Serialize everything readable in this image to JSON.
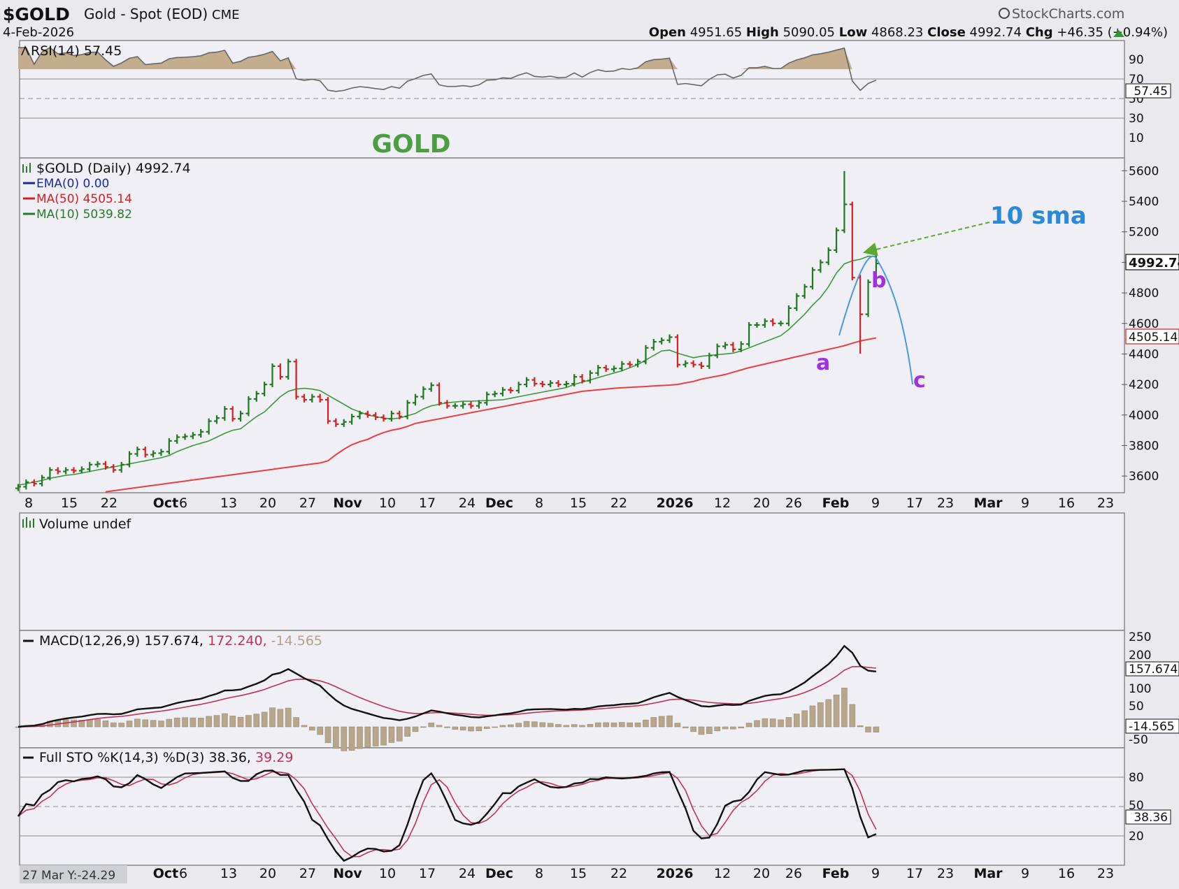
{
  "header": {
    "symbol": "$GOLD",
    "name": "Gold - Spot (EOD)",
    "exchange": "CME",
    "date": "4-Feb-2026",
    "brand": "StockCharts.com",
    "open_label": "Open",
    "open": "4951.65",
    "high_label": "High",
    "high": "5090.05",
    "low_label": "Low",
    "low": "4868.23",
    "close_label": "Close",
    "close": "4992.74",
    "chg_label": "Chg",
    "chg": "+46.35 (+0.94%)"
  },
  "colors": {
    "up": "#1f7a1f",
    "down": "#d42020",
    "ma50": "#e84040",
    "ma10": "#3a9a3a",
    "projection": "#4a9ae0",
    "wave_label": "#a030e0",
    "title_green": "#4aa040",
    "ema": "#1a2a9a",
    "macd_signal": "#c0305a",
    "hist": "#b8a68a"
  },
  "rsi_panel": {
    "legend": "RSI(14) 57.45",
    "badge": "57.45",
    "ticks": [
      "90",
      "70",
      "50",
      "30",
      "10"
    ],
    "chart_title": "GOLD"
  },
  "price_panel": {
    "legend_main": "$GOLD (Daily) 4992.74",
    "legend_ema": "EMA(0) 0.00",
    "legend_ma50": "MA(50) 4505.14",
    "legend_ma10": "MA(10) 5039.82",
    "ticks": [
      "5600",
      "5400",
      "5200",
      "5000",
      "4800",
      "4600",
      "4400",
      "4200",
      "4000",
      "3800",
      "3600"
    ],
    "badge_close": "4992.74",
    "badge_ma50": "4505.14",
    "annotation_sma": "10 sma",
    "wave_a": "a",
    "wave_b": "b",
    "wave_c": "c"
  },
  "date_axis": {
    "labels": [
      "8",
      "15",
      "22",
      "Oct",
      "6",
      "13",
      "20",
      "27",
      "Nov",
      "10",
      "17",
      "24",
      "Dec",
      "8",
      "15",
      "22",
      "2026",
      "12",
      "20",
      "26",
      "Feb",
      "9",
      "17",
      "23",
      "Mar",
      "9",
      "16",
      "23"
    ],
    "bold": [
      "Oct",
      "Nov",
      "Dec",
      "2026",
      "Feb",
      "Mar"
    ]
  },
  "volume_panel": {
    "legend": "Volume undef"
  },
  "macd_panel": {
    "legend_name": "MACD(12,26,9)",
    "legend_macd": "157.674,",
    "legend_signal": "172.240,",
    "legend_hist": "-14.565",
    "ticks": [
      "250",
      "200",
      "100",
      "50",
      "-50"
    ],
    "badge_macd": "157.674",
    "badge_hist": "-14.565"
  },
  "sto_panel": {
    "legend_name": "Full STO %K(14,3) %D(3)",
    "legend_k": "38.36,",
    "legend_d": "39.29",
    "ticks": [
      "80",
      "50",
      "20"
    ],
    "badge": "38.36"
  },
  "footer": {
    "note": "27 Mar Y:-24.29"
  },
  "chart_data": {
    "type": "line",
    "title": "$GOLD (Daily)",
    "ylim": [
      3500,
      5650
    ],
    "x": [
      "2025-09-02",
      "2025-09-03",
      "2025-09-04",
      "2025-09-05",
      "2025-09-08",
      "2025-09-09",
      "2025-09-10",
      "2025-09-11",
      "2025-09-12",
      "2025-09-15",
      "2025-09-16",
      "2025-09-17",
      "2025-09-18",
      "2025-09-19",
      "2025-09-22",
      "2025-09-23",
      "2025-09-24",
      "2025-09-25",
      "2025-09-26",
      "2025-09-29",
      "2025-09-30",
      "2025-10-01",
      "2025-10-02",
      "2025-10-03",
      "2025-10-06",
      "2025-10-07",
      "2025-10-08",
      "2025-10-09",
      "2025-10-10",
      "2025-10-13",
      "2025-10-14",
      "2025-10-15",
      "2025-10-16",
      "2025-10-17",
      "2025-10-20",
      "2025-10-21",
      "2025-10-22",
      "2025-10-23",
      "2025-10-24",
      "2025-10-27",
      "2025-10-28",
      "2025-10-29",
      "2025-10-30",
      "2025-10-31",
      "2025-11-03",
      "2025-11-04",
      "2025-11-05",
      "2025-11-06",
      "2025-11-07",
      "2025-11-10",
      "2025-11-11",
      "2025-11-12",
      "2025-11-13",
      "2025-11-14",
      "2025-11-17",
      "2025-11-18",
      "2025-11-19",
      "2025-11-20",
      "2025-11-21",
      "2025-11-24",
      "2025-11-25",
      "2025-11-26",
      "2025-11-27",
      "2025-11-28",
      "2025-12-01",
      "2025-12-02",
      "2025-12-03",
      "2025-12-04",
      "2025-12-05",
      "2025-12-08",
      "2025-12-09",
      "2025-12-10",
      "2025-12-11",
      "2025-12-12",
      "2025-12-15",
      "2025-12-16",
      "2025-12-17",
      "2025-12-18",
      "2025-12-19",
      "2025-12-22",
      "2025-12-23",
      "2025-12-24",
      "2025-12-26",
      "2025-12-29",
      "2025-12-30",
      "2025-12-31",
      "2026-01-02",
      "2026-01-05",
      "2026-01-06",
      "2026-01-07",
      "2026-01-08",
      "2026-01-09",
      "2026-01-12",
      "2026-01-13",
      "2026-01-14",
      "2026-01-15",
      "2026-01-16",
      "2026-01-20",
      "2026-01-21",
      "2026-01-22",
      "2026-01-23",
      "2026-01-26",
      "2026-01-27",
      "2026-01-28",
      "2026-01-29",
      "2026-01-30",
      "2026-02-02",
      "2026-02-03",
      "2026-02-04"
    ],
    "series": [
      {
        "name": "$GOLD",
        "values": [
          3530,
          3560,
          3550,
          3590,
          3640,
          3630,
          3640,
          3635,
          3645,
          3675,
          3680,
          3660,
          3640,
          3675,
          3745,
          3775,
          3740,
          3750,
          3760,
          3830,
          3855,
          3860,
          3870,
          3890,
          3960,
          3980,
          4040,
          3975,
          4010,
          4105,
          4140,
          4200,
          4320,
          4250,
          4350,
          4120,
          4100,
          4120,
          4100,
          3960,
          3940,
          3955,
          3990,
          4010,
          4000,
          3985,
          3975,
          4010,
          3990,
          4080,
          4120,
          4170,
          4195,
          4080,
          4060,
          4060,
          4070,
          4060,
          4080,
          4135,
          4140,
          4165,
          4160,
          4200,
          4230,
          4205,
          4200,
          4210,
          4200,
          4205,
          4250,
          4225,
          4275,
          4310,
          4300,
          4305,
          4335,
          4330,
          4350,
          4440,
          4480,
          4490,
          4510,
          4330,
          4340,
          4330,
          4320,
          4390,
          4450,
          4460,
          4430,
          4465,
          4590,
          4590,
          4615,
          4600,
          4600,
          4700,
          4780,
          4840,
          4950,
          5000,
          5080,
          5210,
          5380,
          4900,
          4660,
          4870,
          4992.74
        ]
      },
      {
        "name": "MA(50)",
        "values": [
          3420,
          3427,
          3434,
          3441,
          3448,
          3455,
          3462,
          3469,
          3476,
          3483,
          3490,
          3497,
          3504,
          3511,
          3518,
          3525,
          3532,
          3539,
          3546,
          3553,
          3560,
          3567,
          3574,
          3581,
          3588,
          3595,
          3602,
          3609,
          3616,
          3623,
          3630,
          3637,
          3644,
          3651,
          3658,
          3665,
          3672,
          3679,
          3686,
          3700,
          3740,
          3775,
          3805,
          3825,
          3840,
          3865,
          3885,
          3900,
          3910,
          3925,
          3945,
          3955,
          3965,
          3975,
          3985,
          3995,
          4005,
          4015,
          4025,
          4035,
          4045,
          4055,
          4065,
          4075,
          4085,
          4095,
          4105,
          4115,
          4125,
          4135,
          4145,
          4155,
          4160,
          4165,
          4170,
          4175,
          4178,
          4181,
          4184,
          4187,
          4190,
          4193,
          4196,
          4200,
          4210,
          4220,
          4235,
          4245,
          4255,
          4265,
          4280,
          4295,
          4310,
          4322,
          4334,
          4346,
          4358,
          4370,
          4382,
          4394,
          4406,
          4418,
          4430,
          4442,
          4454,
          4470,
          4485,
          4495,
          4505.14
        ]
      },
      {
        "name": "MA(10)",
        "values": [
          3540,
          3550,
          3560,
          3572,
          3585,
          3595,
          3605,
          3610,
          3620,
          3630,
          3640,
          3650,
          3660,
          3670,
          3680,
          3690,
          3700,
          3710,
          3720,
          3735,
          3760,
          3780,
          3800,
          3815,
          3830,
          3855,
          3880,
          3900,
          3910,
          3950,
          3990,
          4020,
          4070,
          4120,
          4155,
          4170,
          4175,
          4170,
          4160,
          4130,
          4100,
          4070,
          4040,
          4020,
          4000,
          3990,
          3980,
          3975,
          3980,
          3995,
          4010,
          4040,
          4060,
          4070,
          4080,
          4085,
          4090,
          4090,
          4093,
          4095,
          4097,
          4100,
          4110,
          4120,
          4130,
          4140,
          4150,
          4160,
          4170,
          4180,
          4200,
          4215,
          4230,
          4245,
          4260,
          4275,
          4290,
          4310,
          4330,
          4360,
          4390,
          4420,
          4425,
          4405,
          4390,
          4375,
          4385,
          4390,
          4395,
          4400,
          4405,
          4420,
          4440,
          4460,
          4480,
          4500,
          4520,
          4560,
          4610,
          4660,
          4720,
          4770,
          4840,
          4930,
          4990,
          5010,
          5020,
          5040,
          5039.82
        ]
      }
    ]
  }
}
